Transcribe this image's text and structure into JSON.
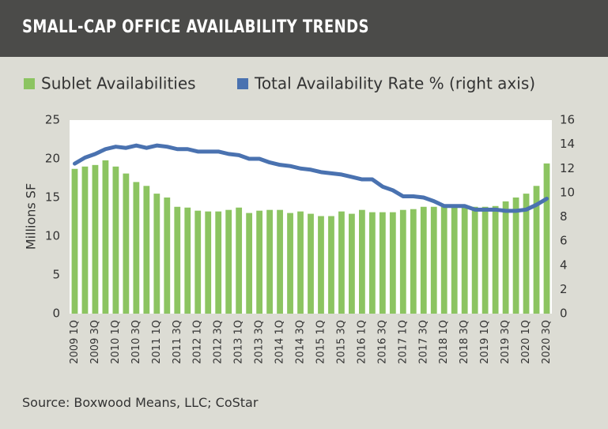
{
  "chart_data": {
    "type": "bar-line",
    "title": "SMALL-CAP OFFICE AVAILABILITY TRENDS",
    "source": "Source: Boxwood Means, LLC; CoStar",
    "y_label": "Millions SF",
    "categories": [
      "2009 1Q",
      null,
      "2009 3Q",
      null,
      "2010 1Q",
      null,
      "2010 3Q",
      null,
      "2011 1Q",
      null,
      "2011 3Q",
      null,
      "2012 1Q",
      null,
      "2012 3Q",
      null,
      "2013 1Q",
      null,
      "2013 3Q",
      null,
      "2014 1Q",
      null,
      "2014 3Q",
      null,
      "2015 1Q",
      null,
      "2015 3Q",
      null,
      "2016 1Q",
      null,
      "2016 3Q",
      null,
      "2017 1Q",
      null,
      "2017 3Q",
      null,
      "2018 1Q",
      null,
      "2018 3Q",
      null,
      "2019 1Q",
      null,
      "2019 3Q",
      null,
      "2020 1Q",
      null,
      "2020 3Q"
    ],
    "series": [
      {
        "name": "Sublet Availabilities",
        "color": "#8cc461",
        "type": "bar",
        "values": [
          18.7,
          19.0,
          19.2,
          19.8,
          19.0,
          18.1,
          17.0,
          16.5,
          15.5,
          15.0,
          13.8,
          13.7,
          13.3,
          13.2,
          13.2,
          13.4,
          13.7,
          13.0,
          13.3,
          13.4,
          13.4,
          13.0,
          13.2,
          12.9,
          12.6,
          12.6,
          13.2,
          12.9,
          13.4,
          13.1,
          13.1,
          13.1,
          13.4,
          13.5,
          13.8,
          13.8,
          13.8,
          13.8,
          13.9,
          13.8,
          13.8,
          13.9,
          14.5,
          15.0,
          15.5,
          16.5,
          19.4
        ]
      },
      {
        "name": "Total Availability Rate % (right axis)",
        "color": "#4a72b0",
        "type": "line",
        "axis": "y2",
        "values": [
          12.4,
          12.9,
          13.2,
          13.6,
          13.8,
          13.7,
          13.9,
          13.7,
          13.9,
          13.8,
          13.6,
          13.6,
          13.4,
          13.4,
          13.4,
          13.2,
          13.1,
          12.8,
          12.8,
          12.5,
          12.3,
          12.2,
          12.0,
          11.9,
          11.7,
          11.6,
          11.5,
          11.3,
          11.1,
          11.1,
          10.5,
          10.2,
          9.7,
          9.7,
          9.6,
          9.3,
          8.9,
          8.9,
          8.9,
          8.6,
          8.6,
          8.6,
          8.5,
          8.5,
          8.6,
          9.0,
          9.5
        ]
      }
    ],
    "ylim": [
      0,
      25
    ],
    "yticks": [
      0,
      5,
      10,
      15,
      20,
      25
    ],
    "y2lim": [
      0,
      16
    ],
    "y2ticks": [
      0,
      2,
      4,
      6,
      8,
      10,
      12,
      14,
      16
    ]
  }
}
